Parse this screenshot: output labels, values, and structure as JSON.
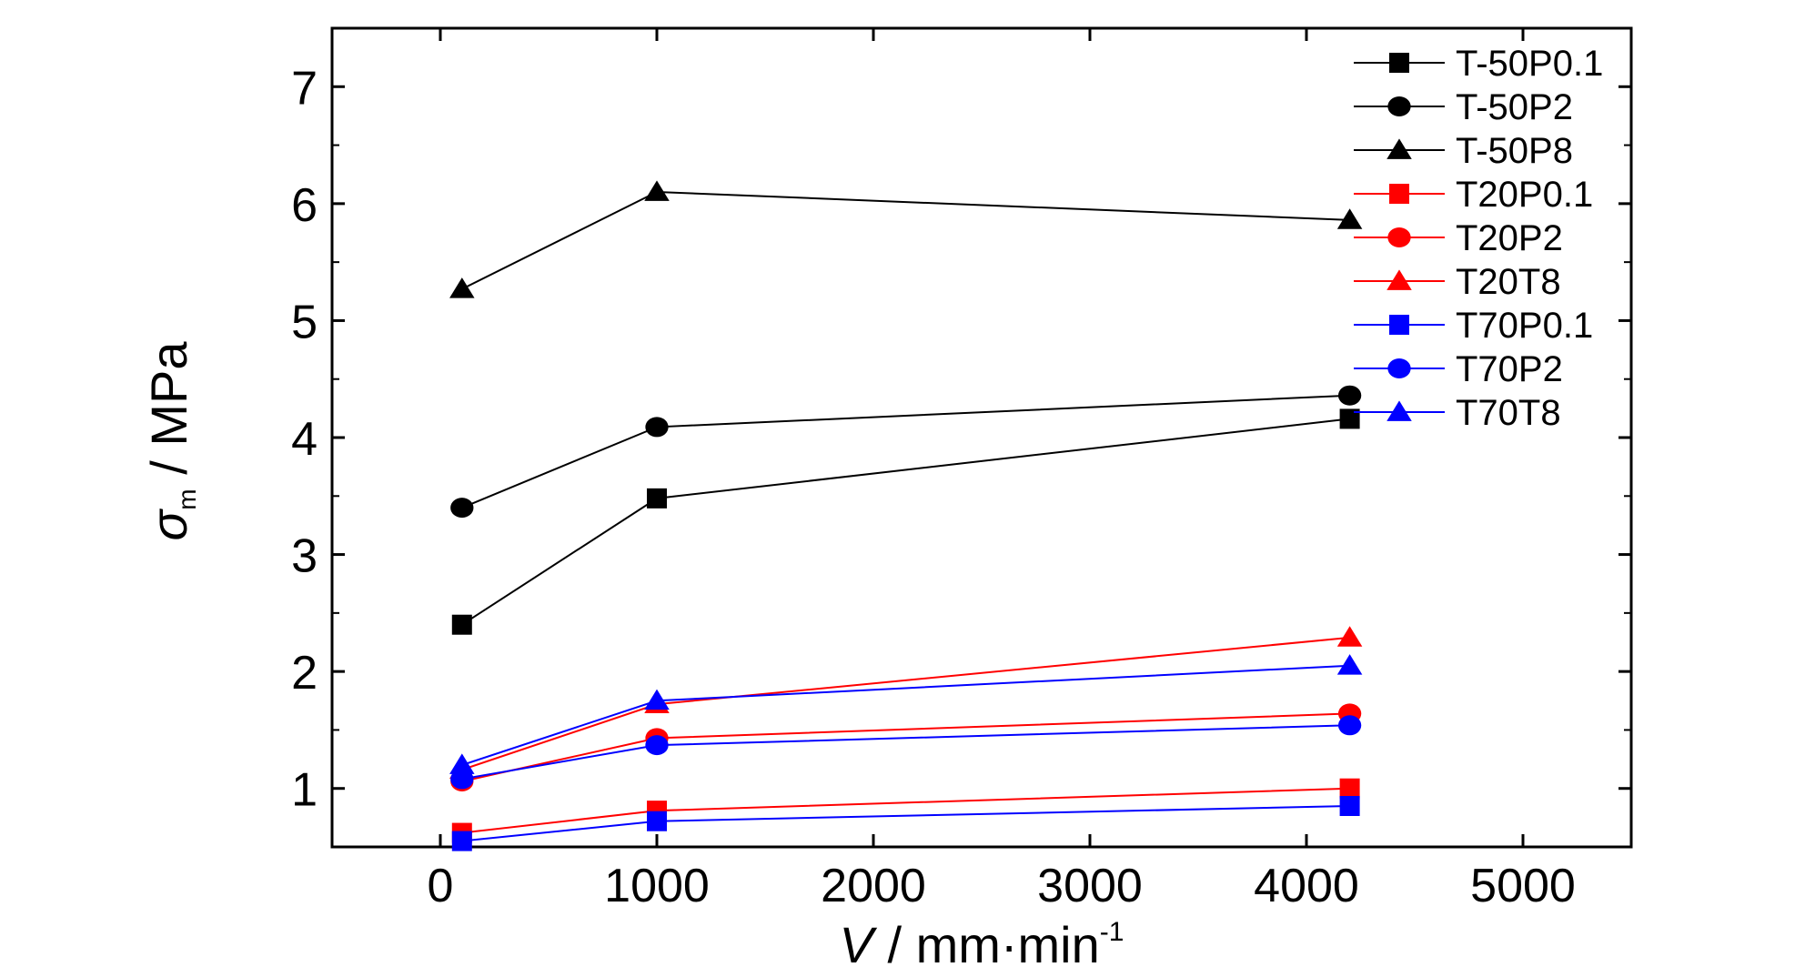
{
  "chart_data": {
    "type": "line",
    "xlabel": {
      "symbol": "V",
      "unit": " / mm·min",
      "exponent": "-1"
    },
    "ylabel": {
      "symbol": "σ",
      "subscript": "m",
      "unit": " / MPa"
    },
    "xlim": [
      -500,
      5500
    ],
    "ylim": [
      0.5,
      7.5
    ],
    "xticks": [
      0,
      1000,
      2000,
      3000,
      4000,
      5000
    ],
    "yticks": [
      1,
      2,
      3,
      4,
      5,
      6,
      7
    ],
    "x_tick_labels": [
      "0",
      "1000",
      "2000",
      "3000",
      "4000",
      "5000"
    ],
    "y_tick_labels": [
      "1",
      "2",
      "3",
      "4",
      "5",
      "6",
      "7"
    ],
    "grid": false,
    "legend_position": "top-right",
    "series": [
      {
        "name": "T-50P0.1",
        "color": "#000000",
        "marker": "square",
        "x": [
          100,
          1000,
          4200
        ],
        "y": [
          2.4,
          3.48,
          4.16
        ]
      },
      {
        "name": "T-50P2",
        "color": "#000000",
        "marker": "circle",
        "x": [
          100,
          1000,
          4200
        ],
        "y": [
          3.4,
          4.09,
          4.36
        ]
      },
      {
        "name": "T-50P8",
        "color": "#000000",
        "marker": "triangle",
        "x": [
          100,
          1000,
          4200
        ],
        "y": [
          5.27,
          6.1,
          5.86
        ]
      },
      {
        "name": "T20P0.1",
        "color": "#ff0000",
        "marker": "square",
        "x": [
          100,
          1000,
          4200
        ],
        "y": [
          0.62,
          0.81,
          1.0
        ]
      },
      {
        "name": "T20P2",
        "color": "#ff0000",
        "marker": "circle",
        "x": [
          100,
          1000,
          4200
        ],
        "y": [
          1.06,
          1.43,
          1.64
        ]
      },
      {
        "name": "T20T8",
        "color": "#ff0000",
        "marker": "triangle",
        "x": [
          100,
          1000,
          4200
        ],
        "y": [
          1.16,
          1.72,
          2.29
        ]
      },
      {
        "name": "T70P0.1",
        "color": "#0000ff",
        "marker": "square",
        "x": [
          100,
          1000,
          4200
        ],
        "y": [
          0.55,
          0.72,
          0.85
        ]
      },
      {
        "name": "T70P2",
        "color": "#0000ff",
        "marker": "circle",
        "x": [
          100,
          1000,
          4200
        ],
        "y": [
          1.08,
          1.37,
          1.54
        ]
      },
      {
        "name": "T70T8",
        "color": "#0000ff",
        "marker": "triangle",
        "x": [
          100,
          1000,
          4200
        ],
        "y": [
          1.2,
          1.75,
          2.05
        ]
      }
    ]
  }
}
